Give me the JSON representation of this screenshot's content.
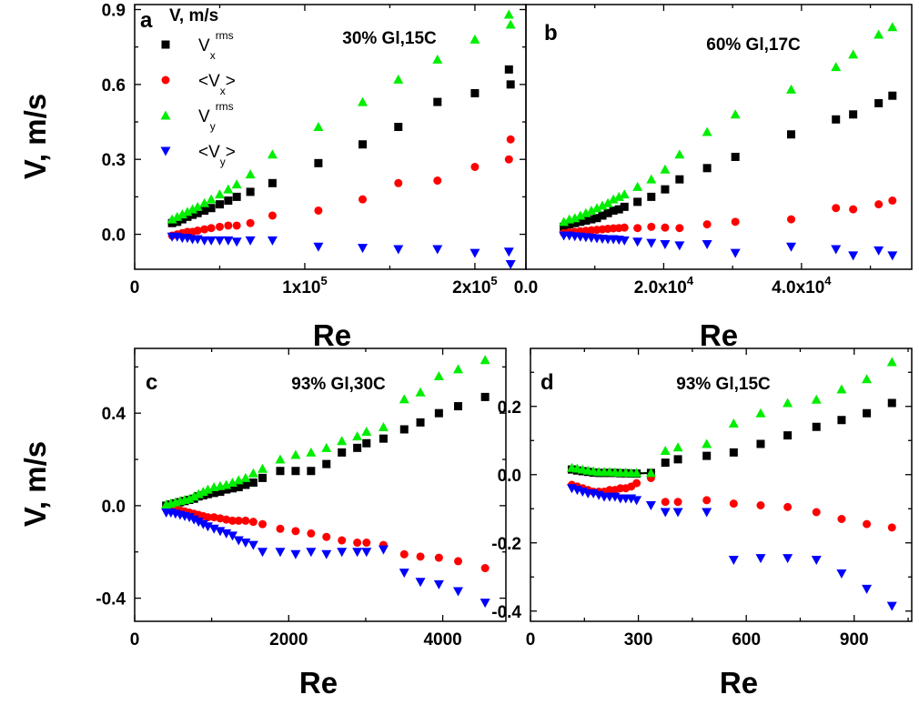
{
  "colors": {
    "Vx_rms": "#000000",
    "Vx_mean": "#ff0000",
    "Vy_rms": "#00ee00",
    "Vy_mean": "#0000ff"
  },
  "legend": {
    "title": "V, m/s",
    "entries": [
      {
        "key": "Vx_rms",
        "base": "V",
        "sub": "x",
        "sup": "rms",
        "marker": "square"
      },
      {
        "key": "Vx_mean",
        "base": "<V",
        "sub": "x",
        "close": ">",
        "marker": "circle"
      },
      {
        "key": "Vy_rms",
        "base": "V",
        "sub": "y",
        "sup": "rms",
        "marker": "triangle-up"
      },
      {
        "key": "Vy_mean",
        "base": "<V",
        "sub": "y",
        "close": ">",
        "marker": "triangle-down"
      }
    ]
  },
  "chart_data": [
    {
      "id": "a",
      "type": "scatter",
      "panel_label": "a",
      "annotation": "30% Gl,15C",
      "xlabel": "Re",
      "ylabel": "V, m/s",
      "xlim": [
        0,
        230000
      ],
      "ylim": [
        -0.14,
        0.92
      ],
      "xticks": [
        {
          "v": 0,
          "label": "0"
        },
        {
          "v": 100000,
          "label": "1x10",
          "sup": "5"
        },
        {
          "v": 200000,
          "label": "2x10",
          "sup": "5"
        }
      ],
      "yticks": [
        {
          "v": 0,
          "label": "0.0"
        },
        {
          "v": 0.3,
          "label": "0.3"
        },
        {
          "v": 0.6,
          "label": "0.6"
        },
        {
          "v": 0.9,
          "label": "0.9"
        }
      ],
      "series": [
        {
          "key": "Vx_rms",
          "x": [
            22000,
            25000,
            28000,
            31000,
            34000,
            37000,
            41000,
            45000,
            50000,
            55000,
            60000,
            68000,
            81000,
            108000,
            134000,
            155000,
            178000,
            200000,
            220000,
            221000
          ],
          "y": [
            0.045,
            0.05,
            0.06,
            0.07,
            0.078,
            0.085,
            0.095,
            0.105,
            0.12,
            0.135,
            0.15,
            0.17,
            0.205,
            0.285,
            0.36,
            0.43,
            0.53,
            0.565,
            0.66,
            0.6
          ]
        },
        {
          "key": "Vx_mean",
          "x": [
            22000,
            25000,
            28000,
            31000,
            34000,
            37000,
            41000,
            45000,
            50000,
            55000,
            60000,
            68000,
            81000,
            108000,
            134000,
            155000,
            178000,
            200000,
            220000,
            221000
          ],
          "y": [
            -0.005,
            0.0,
            0.005,
            0.01,
            0.01,
            0.015,
            0.02,
            0.025,
            0.03,
            0.035,
            0.035,
            0.045,
            0.075,
            0.095,
            0.14,
            0.205,
            0.215,
            0.27,
            0.3,
            0.38
          ]
        },
        {
          "key": "Vy_rms",
          "x": [
            22000,
            25000,
            28000,
            31000,
            34000,
            37000,
            41000,
            45000,
            50000,
            55000,
            60000,
            68000,
            81000,
            108000,
            134000,
            155000,
            178000,
            200000,
            220000,
            221000
          ],
          "y": [
            0.06,
            0.07,
            0.08,
            0.09,
            0.1,
            0.11,
            0.125,
            0.14,
            0.16,
            0.18,
            0.2,
            0.24,
            0.32,
            0.43,
            0.53,
            0.62,
            0.7,
            0.78,
            0.88,
            0.84
          ]
        },
        {
          "key": "Vy_mean",
          "x": [
            22000,
            25000,
            28000,
            31000,
            34000,
            37000,
            41000,
            45000,
            50000,
            55000,
            60000,
            68000,
            81000,
            108000,
            134000,
            155000,
            178000,
            200000,
            220000,
            221000
          ],
          "y": [
            -0.01,
            -0.01,
            -0.015,
            -0.015,
            -0.02,
            -0.02,
            -0.025,
            -0.025,
            -0.025,
            -0.025,
            -0.03,
            -0.025,
            -0.025,
            -0.05,
            -0.055,
            -0.06,
            -0.06,
            -0.075,
            -0.07,
            -0.12
          ]
        }
      ]
    },
    {
      "id": "b",
      "type": "scatter",
      "panel_label": "b",
      "annotation": "60% Gl,17C",
      "xlabel": "Re",
      "ylabel": "",
      "xlim": [
        0,
        56000
      ],
      "ylim": [
        -0.14,
        0.92
      ],
      "xticks": [
        {
          "v": 0,
          "label": "0.0"
        },
        {
          "v": 20000,
          "label": "2.0x10",
          "sup": "4"
        },
        {
          "v": 40000,
          "label": "4.0x10",
          "sup": "4"
        }
      ],
      "yticks": [],
      "series": [
        {
          "key": "Vx_rms",
          "x": [
            5500,
            6300,
            7100,
            7900,
            8700,
            9500,
            10300,
            11100,
            11900,
            12700,
            13500,
            14300,
            16200,
            18200,
            20200,
            22300,
            26300,
            30400,
            38500,
            45000,
            47500,
            51200,
            53200
          ],
          "y": [
            0.03,
            0.04,
            0.045,
            0.05,
            0.055,
            0.06,
            0.065,
            0.075,
            0.085,
            0.095,
            0.1,
            0.11,
            0.13,
            0.15,
            0.18,
            0.22,
            0.265,
            0.31,
            0.4,
            0.46,
            0.48,
            0.525,
            0.555
          ]
        },
        {
          "key": "Vx_mean",
          "x": [
            5500,
            6300,
            7100,
            7900,
            8700,
            9500,
            10300,
            11100,
            11900,
            12700,
            13500,
            14300,
            16200,
            18200,
            20200,
            22300,
            26300,
            30400,
            38500,
            45000,
            47500,
            51200,
            53200
          ],
          "y": [
            0.005,
            0.008,
            0.01,
            0.012,
            0.014,
            0.016,
            0.018,
            0.02,
            0.022,
            0.024,
            0.025,
            0.027,
            0.025,
            0.03,
            0.027,
            0.025,
            0.04,
            0.05,
            0.06,
            0.105,
            0.1,
            0.12,
            0.135
          ]
        },
        {
          "key": "Vy_rms",
          "x": [
            5500,
            6300,
            7100,
            7900,
            8700,
            9500,
            10300,
            11100,
            11900,
            12700,
            13500,
            14300,
            16200,
            18200,
            20200,
            22300,
            26300,
            30400,
            38500,
            45000,
            47500,
            51200,
            53200
          ],
          "y": [
            0.05,
            0.06,
            0.065,
            0.075,
            0.085,
            0.095,
            0.105,
            0.115,
            0.125,
            0.14,
            0.15,
            0.16,
            0.19,
            0.22,
            0.26,
            0.32,
            0.41,
            0.48,
            0.58,
            0.67,
            0.72,
            0.8,
            0.83
          ]
        },
        {
          "key": "Vy_mean",
          "x": [
            5500,
            6300,
            7100,
            7900,
            8700,
            9500,
            10300,
            11100,
            11900,
            12700,
            13500,
            14300,
            16200,
            18200,
            20200,
            22300,
            26300,
            30400,
            38500,
            45000,
            47500,
            51200,
            53200
          ],
          "y": [
            -0.005,
            -0.005,
            -0.008,
            -0.01,
            -0.012,
            -0.014,
            -0.016,
            -0.018,
            -0.02,
            -0.02,
            -0.022,
            -0.025,
            -0.03,
            -0.035,
            -0.04,
            -0.045,
            -0.04,
            -0.075,
            -0.05,
            -0.06,
            -0.085,
            -0.065,
            -0.085
          ]
        }
      ]
    },
    {
      "id": "c",
      "type": "scatter",
      "panel_label": "c",
      "annotation": "93% Gl,30C",
      "xlabel": "Re",
      "ylabel": "V, m/s",
      "xlim": [
        0,
        4820
      ],
      "ylim": [
        -0.5,
        0.68
      ],
      "xticks": [
        {
          "v": 0,
          "label": "0"
        },
        {
          "v": 2000,
          "label": "2000"
        },
        {
          "v": 4000,
          "label": "4000"
        }
      ],
      "yticks": [
        {
          "v": -0.4,
          "label": "-0.4"
        },
        {
          "v": 0,
          "label": "0.0"
        },
        {
          "v": 0.4,
          "label": "0.4"
        }
      ],
      "series": [
        {
          "key": "Vx_rms",
          "x": [
            410,
            470,
            530,
            590,
            650,
            710,
            770,
            830,
            890,
            950,
            1030,
            1110,
            1190,
            1270,
            1350,
            1440,
            1540,
            1660,
            1890,
            2090,
            2290,
            2490,
            2690,
            2890,
            3010,
            3230,
            3500,
            3710,
            3950,
            4200,
            4550
          ],
          "y": [
            0.0,
            0.005,
            0.01,
            0.015,
            0.02,
            0.025,
            0.03,
            0.04,
            0.045,
            0.05,
            0.055,
            0.06,
            0.07,
            0.075,
            0.08,
            0.09,
            0.1,
            0.12,
            0.15,
            0.15,
            0.15,
            0.18,
            0.23,
            0.25,
            0.27,
            0.29,
            0.33,
            0.36,
            0.4,
            0.43,
            0.47
          ]
        },
        {
          "key": "Vx_mean",
          "x": [
            410,
            470,
            530,
            590,
            650,
            710,
            770,
            830,
            890,
            950,
            1030,
            1110,
            1190,
            1270,
            1350,
            1440,
            1540,
            1660,
            1890,
            2090,
            2290,
            2490,
            2690,
            2890,
            3010,
            3230,
            3500,
            3710,
            3950,
            4200,
            4550
          ],
          "y": [
            -0.01,
            -0.01,
            -0.015,
            -0.02,
            -0.025,
            -0.03,
            -0.035,
            -0.04,
            -0.045,
            -0.05,
            -0.05,
            -0.055,
            -0.06,
            -0.065,
            -0.065,
            -0.065,
            -0.07,
            -0.08,
            -0.1,
            -0.11,
            -0.12,
            -0.135,
            -0.15,
            -0.16,
            -0.16,
            -0.17,
            -0.21,
            -0.22,
            -0.225,
            -0.24,
            -0.27
          ]
        },
        {
          "key": "Vy_rms",
          "x": [
            410,
            470,
            530,
            590,
            650,
            710,
            770,
            830,
            890,
            950,
            1030,
            1110,
            1190,
            1270,
            1350,
            1440,
            1540,
            1660,
            1890,
            2090,
            2290,
            2490,
            2690,
            2890,
            3010,
            3230,
            3500,
            3710,
            3950,
            4200,
            4550
          ],
          "y": [
            0.005,
            0.01,
            0.015,
            0.02,
            0.025,
            0.03,
            0.04,
            0.05,
            0.06,
            0.07,
            0.08,
            0.085,
            0.09,
            0.1,
            0.11,
            0.12,
            0.14,
            0.16,
            0.2,
            0.22,
            0.23,
            0.25,
            0.28,
            0.3,
            0.32,
            0.34,
            0.46,
            0.49,
            0.56,
            0.59,
            0.63
          ]
        },
        {
          "key": "Vy_mean",
          "x": [
            410,
            470,
            530,
            590,
            650,
            710,
            770,
            830,
            890,
            950,
            1030,
            1110,
            1190,
            1270,
            1350,
            1440,
            1540,
            1660,
            1890,
            2090,
            2290,
            2490,
            2690,
            2890,
            3010,
            3230,
            3500,
            3710,
            3950,
            4200,
            4550
          ],
          "y": [
            -0.03,
            -0.03,
            -0.035,
            -0.04,
            -0.045,
            -0.05,
            -0.06,
            -0.07,
            -0.08,
            -0.09,
            -0.1,
            -0.11,
            -0.12,
            -0.13,
            -0.15,
            -0.16,
            -0.17,
            -0.2,
            -0.2,
            -0.21,
            -0.2,
            -0.21,
            -0.2,
            -0.2,
            -0.2,
            -0.19,
            -0.29,
            -0.33,
            -0.34,
            -0.37,
            -0.42
          ]
        }
      ]
    },
    {
      "id": "d",
      "type": "scatter",
      "panel_label": "d",
      "annotation": "93% Gl,15C",
      "xlabel": "Re",
      "ylabel": "",
      "xlim": [
        0,
        1060
      ],
      "ylim": [
        -0.43,
        0.37
      ],
      "xticks": [
        {
          "v": 0,
          "label": "0"
        },
        {
          "v": 300,
          "label": "300"
        },
        {
          "v": 600,
          "label": "600"
        },
        {
          "v": 900,
          "label": "900"
        }
      ],
      "yticks": [
        {
          "v": -0.4,
          "label": "-0.4"
        },
        {
          "v": -0.2,
          "label": "-0.2"
        },
        {
          "v": 0,
          "label": "0.0"
        },
        {
          "v": 0.2,
          "label": "0.2"
        }
      ],
      "series": [
        {
          "key": "Vx_rms",
          "x": [
            115,
            130,
            145,
            160,
            175,
            190,
            205,
            220,
            235,
            250,
            265,
            280,
            295,
            335,
            375,
            410,
            490,
            565,
            640,
            715,
            795,
            865,
            935,
            1005
          ],
          "y": [
            0.015,
            0.012,
            0.01,
            0.008,
            0.006,
            0.005,
            0.005,
            0.005,
            0.005,
            0.004,
            0.004,
            0.003,
            0.003,
            0.005,
            0.035,
            0.045,
            0.055,
            0.065,
            0.09,
            0.115,
            0.14,
            0.16,
            0.18,
            0.21
          ]
        },
        {
          "key": "Vx_mean",
          "x": [
            115,
            130,
            145,
            160,
            175,
            190,
            205,
            220,
            235,
            250,
            265,
            280,
            295,
            335,
            375,
            410,
            490,
            565,
            640,
            715,
            795,
            865,
            935,
            1005
          ],
          "y": [
            -0.03,
            -0.035,
            -0.04,
            -0.045,
            -0.05,
            -0.05,
            -0.05,
            -0.045,
            -0.045,
            -0.04,
            -0.04,
            -0.035,
            -0.025,
            -0.01,
            -0.08,
            -0.08,
            -0.075,
            -0.085,
            -0.09,
            -0.095,
            -0.11,
            -0.13,
            -0.145,
            -0.155
          ]
        },
        {
          "key": "Vy_rms",
          "x": [
            115,
            130,
            145,
            160,
            175,
            190,
            205,
            220,
            235,
            250,
            265,
            280,
            295,
            335,
            375,
            410,
            490,
            565,
            640,
            715,
            795,
            865,
            935,
            1005
          ],
          "y": [
            0.02,
            0.018,
            0.015,
            0.012,
            0.01,
            0.008,
            0.008,
            0.008,
            0.007,
            0.006,
            0.006,
            0.005,
            0.005,
            0.005,
            0.07,
            0.08,
            0.09,
            0.15,
            0.18,
            0.21,
            0.22,
            0.25,
            0.28,
            0.33
          ]
        },
        {
          "key": "Vy_mean",
          "x": [
            115,
            130,
            145,
            160,
            175,
            190,
            205,
            220,
            235,
            250,
            265,
            280,
            295,
            335,
            375,
            410,
            490,
            565,
            640,
            715,
            795,
            865,
            935,
            1005
          ],
          "y": [
            -0.04,
            -0.045,
            -0.05,
            -0.055,
            -0.055,
            -0.06,
            -0.065,
            -0.065,
            -0.065,
            -0.07,
            -0.07,
            -0.07,
            -0.075,
            -0.09,
            -0.11,
            -0.11,
            -0.11,
            -0.25,
            -0.245,
            -0.245,
            -0.25,
            -0.29,
            -0.335,
            -0.385
          ]
        }
      ]
    }
  ]
}
